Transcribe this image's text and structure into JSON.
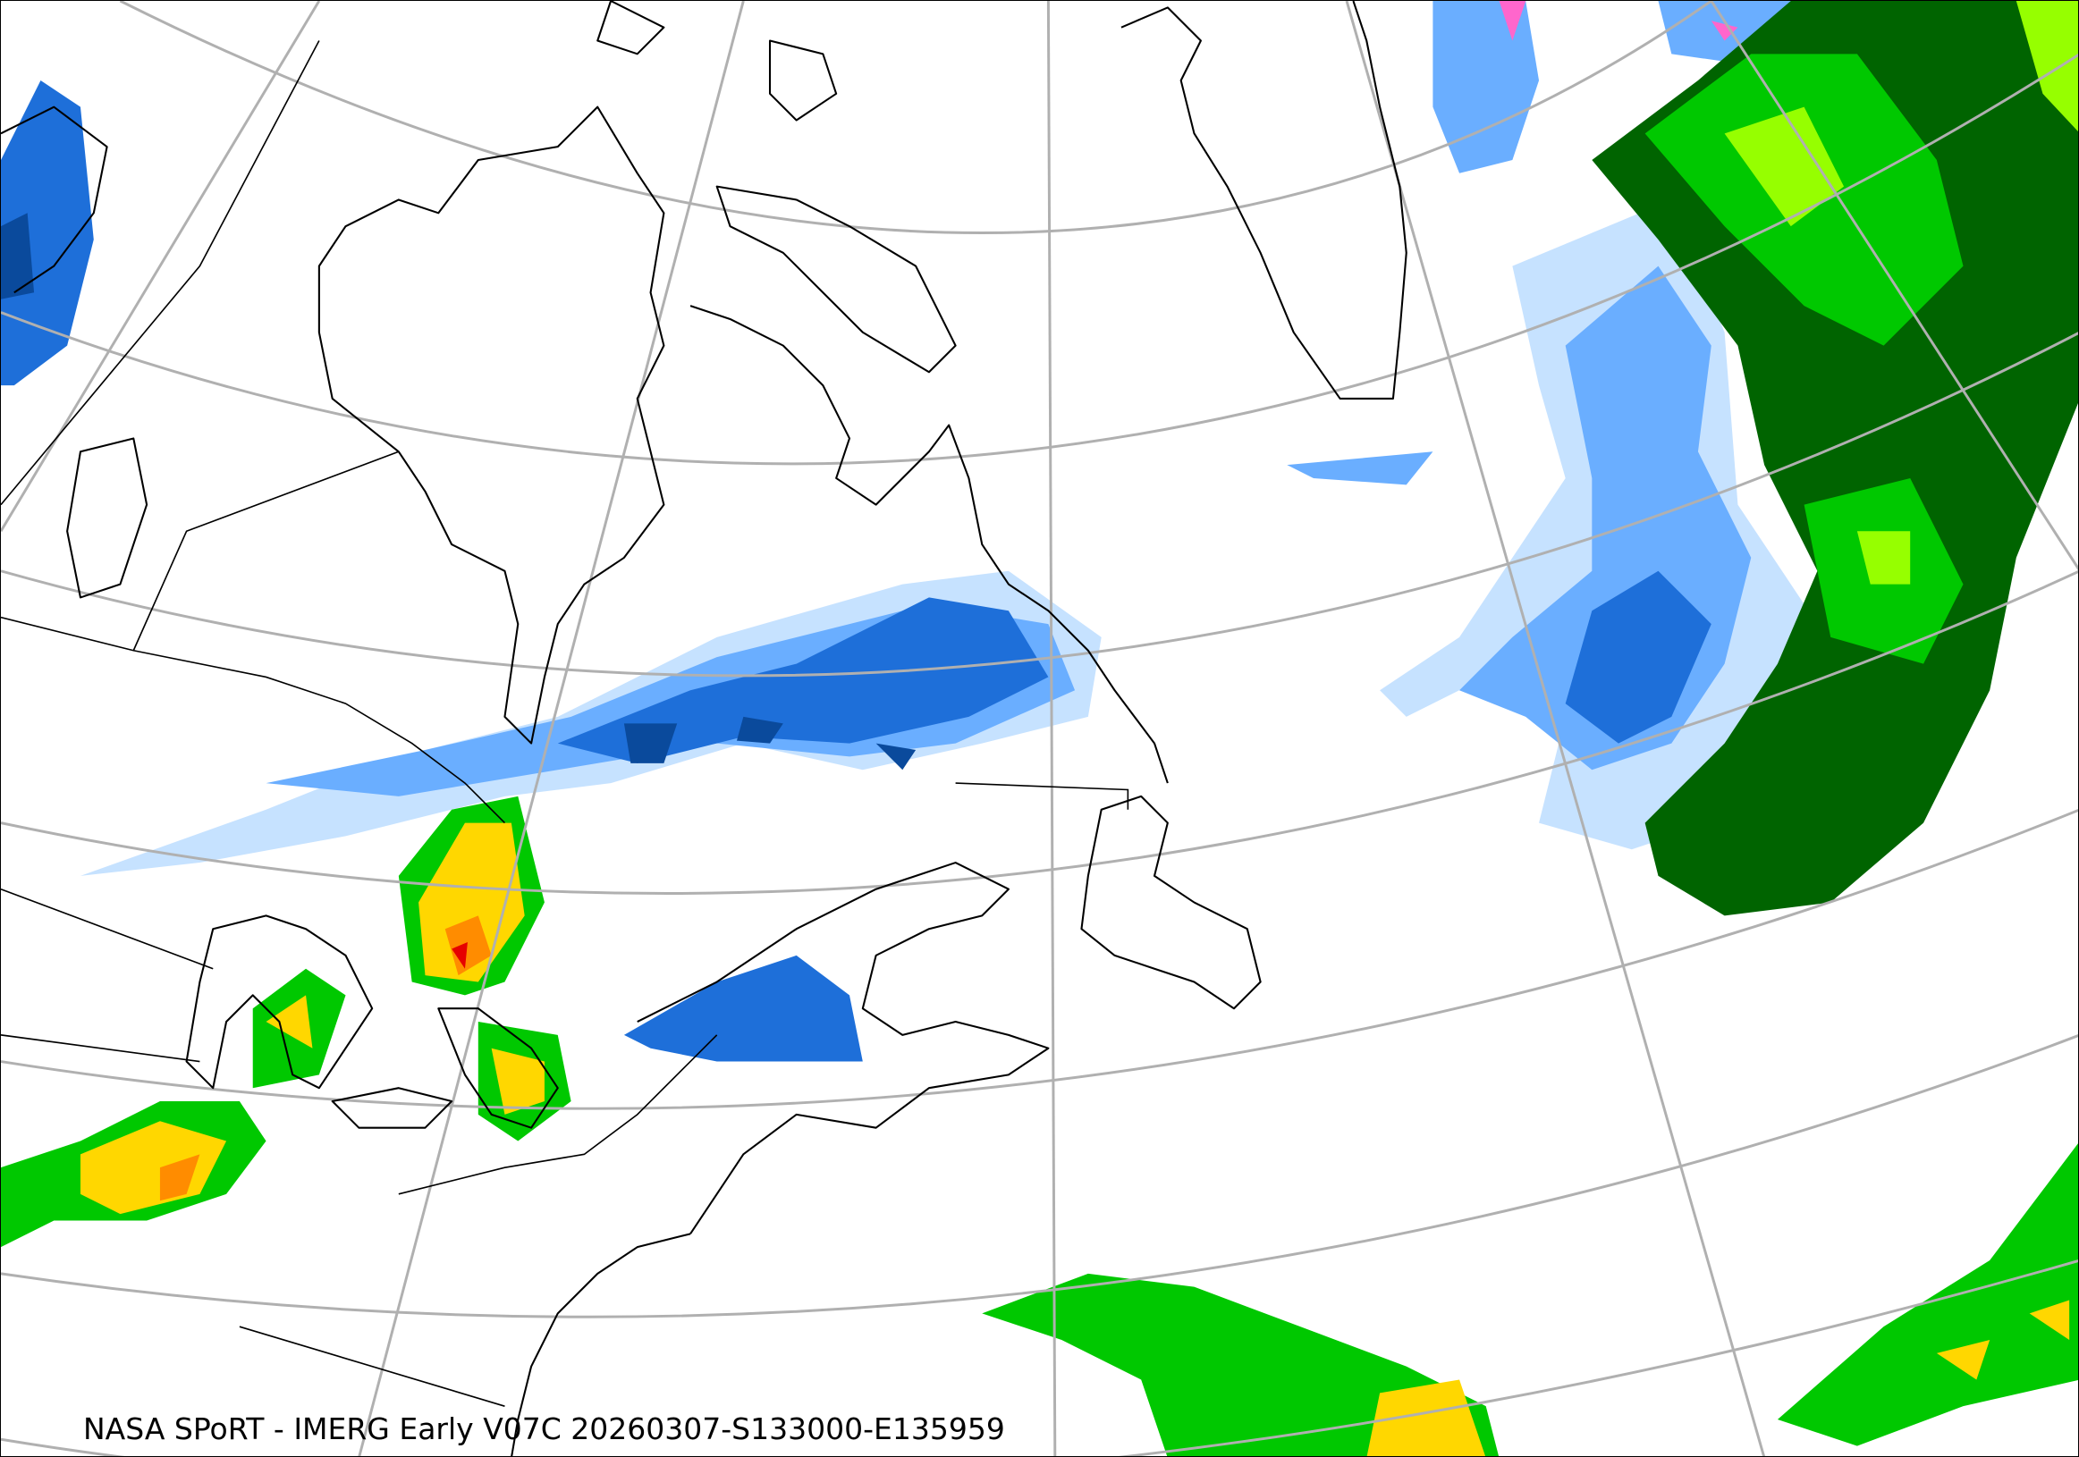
{
  "caption": "NASA SPoRT - IMERG Early V07C 20260307-S133000-E135959",
  "map": {
    "projection": "lambert-conformal",
    "region": "North Atlantic / Eastern Canada / Greenland",
    "graticule": true,
    "graticule_color": "#b0b0b0",
    "coastline_color": "#000000"
  },
  "precip_colors": {
    "snow_light": "#c6e2ff",
    "snow_moderate": "#6aaeff",
    "snow_heavy": "#1e6fd9",
    "snow_very_heavy": "#0a4a9c",
    "snow_extreme": "#ff66cc",
    "rain_light": "#006400",
    "rain_moderate": "#00c800",
    "rain_heavy": "#96ff00",
    "rain_very_heavy": "#ffd700",
    "rain_intense": "#ff8c00",
    "rain_extreme": "#e60000"
  }
}
